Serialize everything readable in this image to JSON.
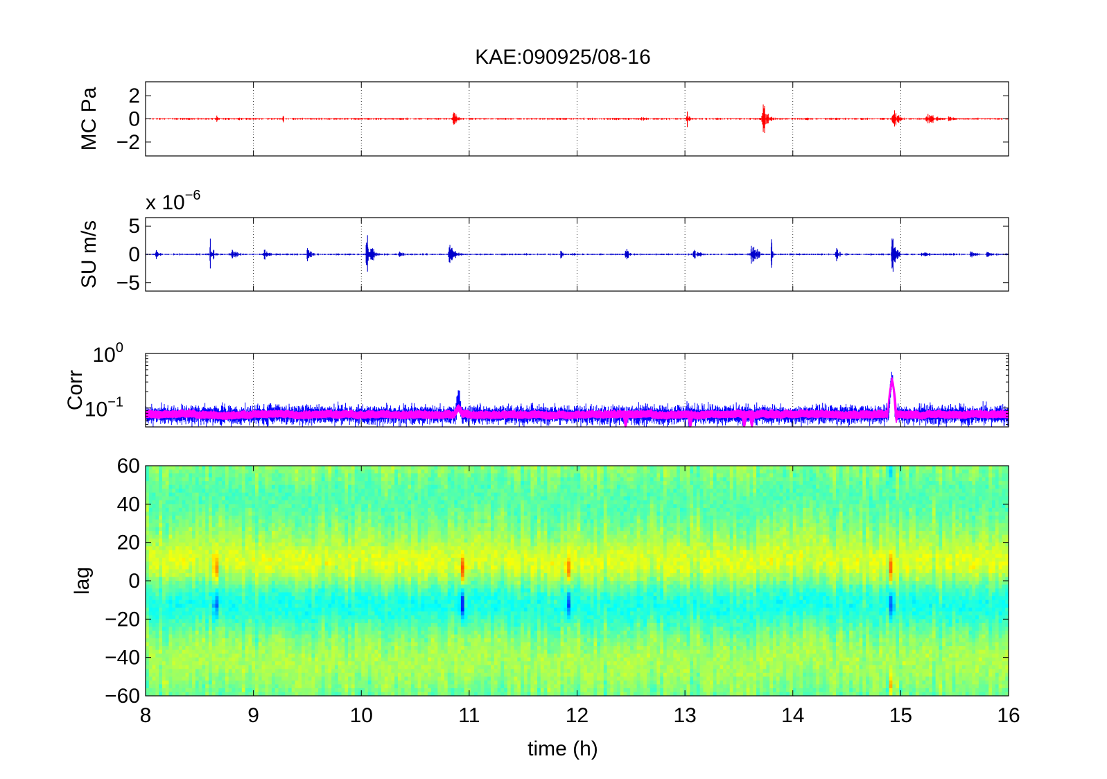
{
  "title": "KAE:090925/08-16",
  "xlabel": "time (h)",
  "xticks": [
    "8",
    "9",
    "10",
    "11",
    "12",
    "13",
    "14",
    "15",
    "16"
  ],
  "chart_data": [
    {
      "type": "line",
      "ylabel": "MC Pa",
      "xlim": [
        8,
        16
      ],
      "ylim": [
        -3.2,
        3.2
      ],
      "yticks": [
        "−2",
        "0",
        "2"
      ],
      "ytick_values": [
        -2,
        0,
        2
      ],
      "grid": "x-dotted",
      "series": [
        {
          "color": "#ff0000",
          "baseline_amplitude": 0.12,
          "bursts": [
            {
              "t": 8.66,
              "amp": 1.1,
              "width": 0.01
            },
            {
              "t": 9.27,
              "amp": 0.5,
              "width": 0.02
            },
            {
              "t": 10.85,
              "amp": 0.9,
              "width": 0.05
            },
            {
              "t": 12.6,
              "amp": 0.3,
              "width": 0.05
            },
            {
              "t": 13.02,
              "amp": 0.9,
              "width": 0.03
            },
            {
              "t": 13.72,
              "amp": 3.0,
              "width": 0.04
            },
            {
              "t": 14.1,
              "amp": 0.4,
              "width": 0.05
            },
            {
              "t": 14.92,
              "amp": 1.6,
              "width": 0.05
            },
            {
              "t": 15.25,
              "amp": 0.8,
              "width": 0.08
            },
            {
              "t": 15.45,
              "amp": 0.4,
              "width": 0.06
            }
          ]
        }
      ]
    },
    {
      "type": "line",
      "ylabel": "SU m/s",
      "exponent_prefix": "x 10",
      "exponent": "−6",
      "xlim": [
        8,
        16
      ],
      "ylim": [
        -6.5,
        6.5
      ],
      "yticks": [
        "−5",
        "0",
        "5"
      ],
      "ytick_values": [
        -5,
        0,
        5
      ],
      "grid": "x-dotted",
      "series": [
        {
          "color": "#0000cc",
          "baseline_amplitude": 0.25,
          "bursts": [
            {
              "t": 8.1,
              "amp": 1.5,
              "width": 0.04
            },
            {
              "t": 8.6,
              "amp": 5.5,
              "width": 0.02
            },
            {
              "t": 8.8,
              "amp": 1.8,
              "width": 0.05
            },
            {
              "t": 9.1,
              "amp": 1.2,
              "width": 0.05
            },
            {
              "t": 9.1,
              "amp": 2.5,
              "width": 0.02
            },
            {
              "t": 9.5,
              "amp": 2.2,
              "width": 0.03
            },
            {
              "t": 10.05,
              "amp": 6.5,
              "width": 0.04
            },
            {
              "t": 10.35,
              "amp": 1.0,
              "width": 0.05
            },
            {
              "t": 10.82,
              "amp": 3.5,
              "width": 0.05
            },
            {
              "t": 11.85,
              "amp": 1.5,
              "width": 0.02
            },
            {
              "t": 12.45,
              "amp": 2.0,
              "width": 0.03
            },
            {
              "t": 13.08,
              "amp": 1.5,
              "width": 0.06
            },
            {
              "t": 13.62,
              "amp": 2.5,
              "width": 0.06
            },
            {
              "t": 13.8,
              "amp": 6.5,
              "width": 0.01
            },
            {
              "t": 14.4,
              "amp": 2.0,
              "width": 0.03
            },
            {
              "t": 14.92,
              "amp": 6.5,
              "width": 0.03
            },
            {
              "t": 15.2,
              "amp": 1.5,
              "width": 0.05
            },
            {
              "t": 15.65,
              "amp": 1.2,
              "width": 0.05
            },
            {
              "t": 15.8,
              "amp": 1.0,
              "width": 0.04
            }
          ]
        }
      ]
    },
    {
      "type": "line",
      "ylabel": "Corr",
      "yscale": "log",
      "xlim": [
        8,
        16
      ],
      "ylim": [
        0.045,
        1.0
      ],
      "yticks": [
        "10",
        "10"
      ],
      "ytick_exponents": [
        "0",
        "−1"
      ],
      "ytick_values": [
        1,
        0.1
      ],
      "grid": "x-dotted",
      "series": [
        {
          "color": "#0000ff",
          "base": 0.075,
          "spread": 0.5,
          "peaks": [
            {
              "t": 10.9,
              "value": 0.15
            },
            {
              "t": 14.92,
              "value": 0.35
            }
          ]
        },
        {
          "color": "#ff00ff",
          "base": 0.075,
          "spread": 0.12,
          "peaks": [
            {
              "t": 10.9,
              "value": 0.1
            },
            {
              "t": 14.92,
              "value": 0.32
            }
          ],
          "dips": [
            12.45,
            13.05,
            13.55,
            13.62,
            14.95
          ]
        }
      ]
    },
    {
      "type": "heatmap",
      "ylabel": "lag",
      "xlim": [
        8,
        16
      ],
      "ylim": [
        -60,
        60
      ],
      "yticks": [
        "60",
        "40",
        "20",
        "0",
        "−20",
        "−40",
        "−60"
      ],
      "ytick_values": [
        60,
        40,
        20,
        0,
        -20,
        -40,
        -60
      ],
      "colormap": "jet",
      "events": [
        {
          "t": 8.65,
          "strength": 0.5
        },
        {
          "t": 10.93,
          "strength": 0.7
        },
        {
          "t": 11.92,
          "strength": 0.4
        },
        {
          "t": 14.92,
          "strength": 1.0
        }
      ]
    }
  ]
}
